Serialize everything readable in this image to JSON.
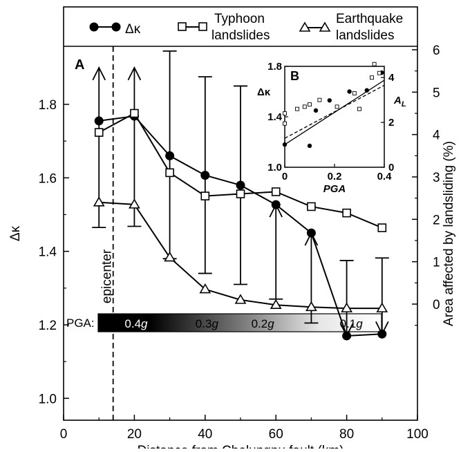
{
  "chart_data": {
    "type": "line",
    "xlabel": "Distance from Chelungpu fault (km)",
    "ylabel_left": "Δκ",
    "ylabel_right": "Area affected by landsliding (%)",
    "xlim": [
      0,
      100
    ],
    "ylim_left": [
      1.0,
      1.9
    ],
    "ylim_right": [
      -0.8,
      6
    ],
    "x_ticks": [
      "0",
      "20",
      "40",
      "60",
      "80",
      "100"
    ],
    "y_left_ticks": [
      "1.0",
      "1.2",
      "1.4",
      "1.6",
      "1.8"
    ],
    "y_right_ticks": [
      "0",
      "1",
      "2",
      "3",
      "4",
      "5",
      "6"
    ],
    "panel_label": "A",
    "legend": [
      {
        "name": "Δκ",
        "marker": "filled-circle"
      },
      {
        "name": "Typhoon landslides",
        "marker": "open-square"
      },
      {
        "name": "Earthquake landslides",
        "marker": "open-triangle"
      }
    ],
    "series": [
      {
        "name": "Δκ",
        "axis": "left",
        "marker": "circle",
        "x": [
          10,
          20,
          30,
          40,
          50,
          60,
          70,
          80,
          90
        ],
        "y": [
          1.755,
          1.768,
          1.66,
          1.607,
          1.58,
          1.527,
          1.45,
          1.17,
          1.175
        ]
      },
      {
        "name": "Typhoon landslides",
        "axis": "right",
        "marker": "square",
        "x": [
          10,
          20,
          30,
          40,
          50,
          60,
          70,
          80,
          90
        ],
        "y": [
          4.05,
          4.5,
          3.1,
          2.55,
          2.6,
          2.65,
          2.3,
          2.15,
          1.8
        ]
      },
      {
        "name": "Earthquake landslides",
        "axis": "right",
        "marker": "triangle",
        "x": [
          10,
          20,
          30,
          40,
          50,
          60,
          70,
          80,
          90
        ],
        "y": [
          2.4,
          2.35,
          1.1,
          0.35,
          0.1,
          -0.02,
          -0.07,
          -0.1,
          -0.1
        ]
      }
    ],
    "error_bars": {
      "axis": "left",
      "x": [
        10,
        20,
        30,
        40,
        50,
        60,
        70,
        80,
        90
      ],
      "lower": [
        1.465,
        1.468,
        1.38,
        1.34,
        1.31,
        1.27,
        1.205,
        1.17,
        1.175
      ],
      "upper": [
        1.9,
        1.9,
        1.945,
        1.875,
        1.85,
        1.527,
        1.45,
        1.375,
        1.382
      ],
      "arrow_up": [
        true,
        true,
        false,
        false,
        false,
        true,
        true,
        false,
        false
      ],
      "arrow_down": [
        false,
        false,
        false,
        false,
        false,
        false,
        false,
        true,
        true
      ]
    },
    "epicenter": {
      "x": 14,
      "label": "epicenter"
    },
    "pga_bar": {
      "label": "PGA:",
      "stops": [
        "0.4",
        "0.3",
        "0.2",
        "0.1"
      ],
      "unit": "g",
      "x_stops": [
        20,
        40,
        55,
        80
      ]
    },
    "inset": {
      "panel_label": "B",
      "xlabel": "PGA",
      "ylabel_left": "Δκ",
      "ylabel_right": "A",
      "ylabel_right_sub": "L",
      "xlim": [
        0,
        0.4
      ],
      "ylim_left": [
        1.0,
        1.8
      ],
      "ylim_right": [
        0,
        4.5
      ],
      "x_ticks": [
        "0",
        "0.2",
        "0.4"
      ],
      "y_left_ticks": [
        "1.0",
        "1.4",
        "1.8"
      ],
      "y_right_ticks": [
        "0",
        "2",
        "4"
      ],
      "dk_points": {
        "x": [
          0.0,
          0.1,
          0.125,
          0.18,
          0.26,
          0.33,
          0.39
        ],
        "y": [
          1.18,
          1.17,
          1.45,
          1.53,
          1.6,
          1.61,
          1.75
        ]
      },
      "al_points": {
        "x": [
          0.0,
          0.0,
          0.05,
          0.08,
          0.1,
          0.14,
          0.21,
          0.28,
          0.3,
          0.35,
          0.36,
          0.38
        ],
        "y": [
          2.4,
          1.95,
          2.6,
          2.7,
          2.8,
          3.0,
          2.7,
          3.3,
          2.6,
          4.0,
          4.6,
          4.2
        ]
      },
      "fit_solid": {
        "x": [
          0,
          0.4
        ],
        "y": [
          1.18,
          1.69
        ]
      },
      "fit_dashed": {
        "x": [
          0,
          0.4
        ],
        "y": [
          1.23,
          1.65
        ]
      }
    }
  }
}
